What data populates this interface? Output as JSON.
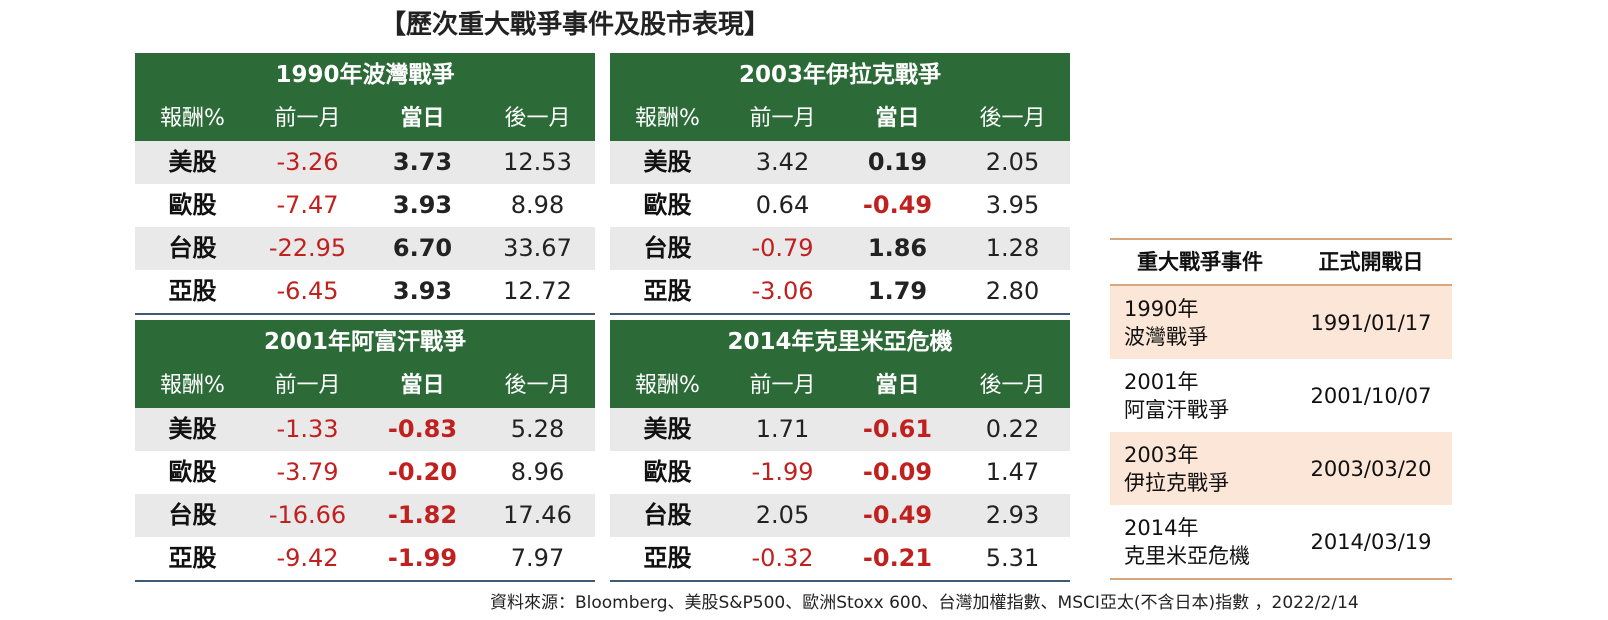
{
  "title": "【歷次重大戰爭事件及股市表現】",
  "columns": [
    "報酬%",
    "前一月",
    "當日",
    "後一月"
  ],
  "chart_data": {
    "type": "table",
    "panels": [
      {
        "title": "1990年波灣戰爭",
        "rows": [
          {
            "label": "美股",
            "values": [
              "-3.26",
              "3.73",
              "12.53"
            ]
          },
          {
            "label": "歐股",
            "values": [
              "-7.47",
              "3.93",
              "8.98"
            ]
          },
          {
            "label": "台股",
            "values": [
              "-22.95",
              "6.70",
              "33.67"
            ]
          },
          {
            "label": "亞股",
            "values": [
              "-6.45",
              "3.93",
              "12.72"
            ]
          }
        ]
      },
      {
        "title": "2003年伊拉克戰爭",
        "rows": [
          {
            "label": "美股",
            "values": [
              "3.42",
              "0.19",
              "2.05"
            ]
          },
          {
            "label": "歐股",
            "values": [
              "0.64",
              "-0.49",
              "3.95"
            ]
          },
          {
            "label": "台股",
            "values": [
              "-0.79",
              "1.86",
              "1.28"
            ]
          },
          {
            "label": "亞股",
            "values": [
              "-3.06",
              "1.79",
              "2.80"
            ]
          }
        ]
      },
      {
        "title": "2001年阿富汗戰爭",
        "rows": [
          {
            "label": "美股",
            "values": [
              "-1.33",
              "-0.83",
              "5.28"
            ]
          },
          {
            "label": "歐股",
            "values": [
              "-3.79",
              "-0.20",
              "8.96"
            ]
          },
          {
            "label": "台股",
            "values": [
              "-16.66",
              "-1.82",
              "17.46"
            ]
          },
          {
            "label": "亞股",
            "values": [
              "-9.42",
              "-1.99",
              "7.97"
            ]
          }
        ]
      },
      {
        "title": "2014年克里米亞危機",
        "rows": [
          {
            "label": "美股",
            "values": [
              "1.71",
              "-0.61",
              "0.22"
            ]
          },
          {
            "label": "歐股",
            "values": [
              "-1.99",
              "-0.09",
              "1.47"
            ]
          },
          {
            "label": "台股",
            "values": [
              "2.05",
              "-0.49",
              "2.93"
            ]
          },
          {
            "label": "亞股",
            "values": [
              "-0.32",
              "-0.21",
              "5.31"
            ]
          }
        ]
      }
    ]
  },
  "dates_table": {
    "headers": [
      "重大戰爭事件",
      "正式開戰日"
    ],
    "rows": [
      {
        "year": "1990年",
        "event": "波灣戰爭",
        "date": "1991/01/17"
      },
      {
        "year": "2001年",
        "event": "阿富汗戰爭",
        "date": "2001/10/07"
      },
      {
        "year": "2003年",
        "event": "伊拉克戰爭",
        "date": "2003/03/20"
      },
      {
        "year": "2014年",
        "event": "克里米亞危機",
        "date": "2014/03/19"
      }
    ]
  },
  "source": "資料來源：Bloomberg、美股S&P500、歐洲Stoxx 600、台灣加權指數、MSCI亞太(不含日本)指數 ，2022/2/14",
  "colors": {
    "header_green": "#2c6a37",
    "negative_red": "#c0211f",
    "row_shade": "#e9e9ea",
    "date_shade": "#fbe6d8",
    "date_border": "#d9a67c"
  }
}
